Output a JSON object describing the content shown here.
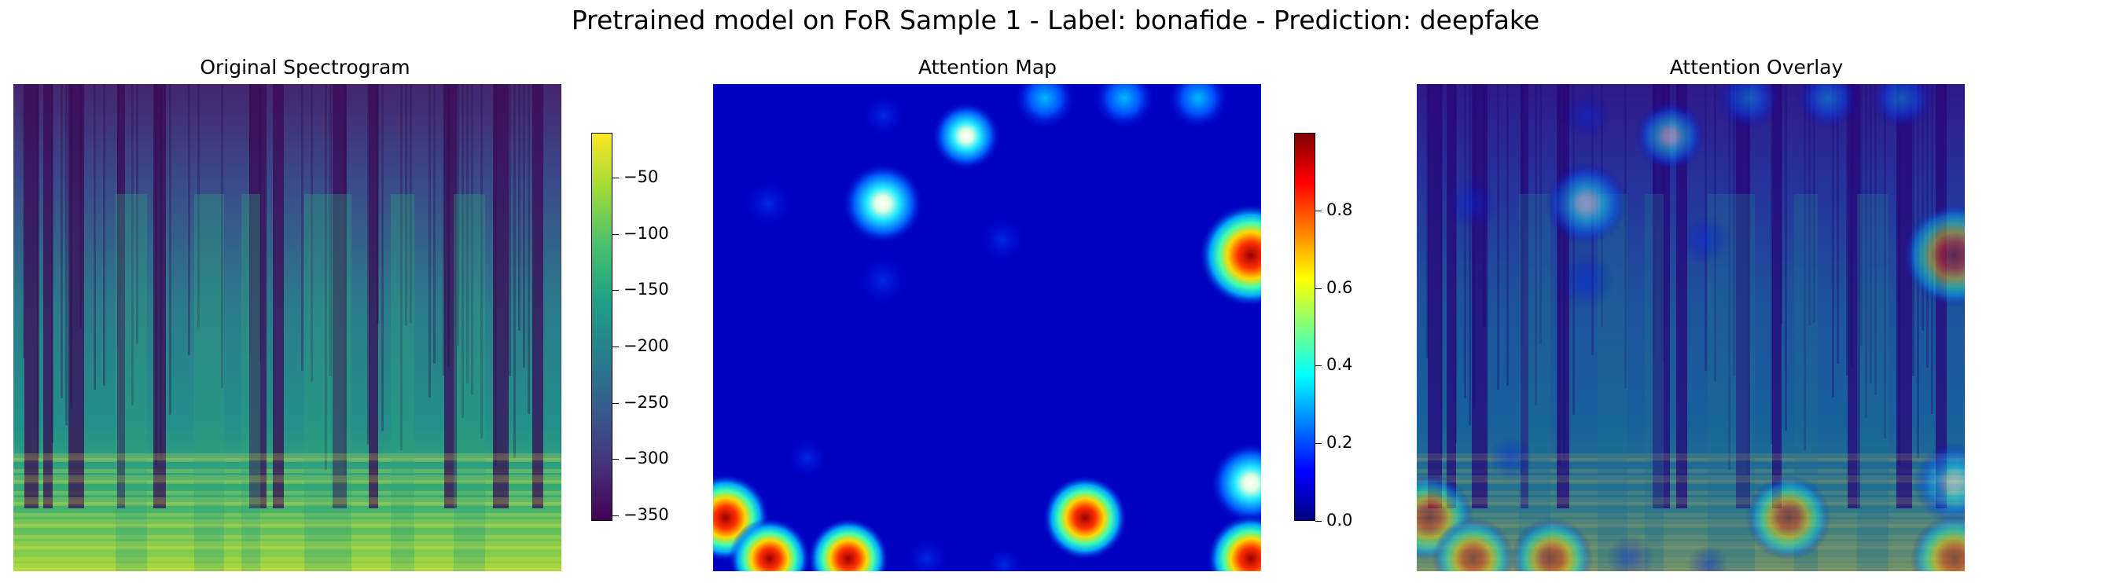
{
  "suptitle": "Pretrained model on FoR Sample 1 - Label: bonafide - Prediction: deepfake",
  "panels": {
    "spectrogram": {
      "title": "Original Spectrogram",
      "colormap": "viridis"
    },
    "attention": {
      "title": "Attention Map",
      "colormap": "jet"
    },
    "overlay": {
      "title": "Attention Overlay"
    }
  },
  "chart_data": [
    {
      "type": "heatmap",
      "title": "Original Spectrogram",
      "axis": "off",
      "colorbar": {
        "colormap": "viridis",
        "range": [
          -355,
          -10
        ],
        "ticks": [
          -50,
          -100,
          -150,
          -200,
          -250,
          -300,
          -350
        ],
        "tick_labels": [
          "−50",
          "−100",
          "−150",
          "−200",
          "−250",
          "−300",
          "−350"
        ]
      }
    },
    {
      "type": "heatmap",
      "title": "Attention Map",
      "axis": "off",
      "colorbar": {
        "colormap": "jet",
        "range": [
          0,
          1
        ],
        "ticks": [
          0.0,
          0.2,
          0.4,
          0.6,
          0.8
        ],
        "tick_labels": [
          "0.0",
          "0.2",
          "0.4",
          "0.6",
          "0.8"
        ]
      }
    },
    {
      "type": "heatmap",
      "title": "Attention Overlay",
      "axis": "off"
    }
  ]
}
